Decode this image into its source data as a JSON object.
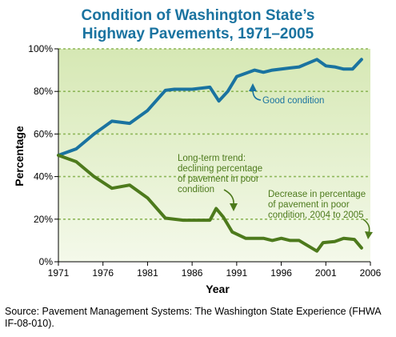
{
  "chart_data": {
    "type": "line",
    "title_line1": "Condition of Washington State’s",
    "title_line2": "Highway Pavements, 1971–2005",
    "xlabel": "Year",
    "ylabel": "Percentage",
    "xlim": [
      1971,
      2006
    ],
    "ylim": [
      0,
      100
    ],
    "x_ticks": [
      1971,
      1976,
      1981,
      1986,
      1991,
      1996,
      2001,
      2006
    ],
    "y_ticks": [
      {
        "value": 0,
        "label": "0%"
      },
      {
        "value": 20,
        "label": "20%"
      },
      {
        "value": 40,
        "label": "40%"
      },
      {
        "value": 60,
        "label": "60%"
      },
      {
        "value": 80,
        "label": "80%"
      },
      {
        "value": 100,
        "label": "100%"
      }
    ],
    "series": [
      {
        "name": "Good condition",
        "color": "#1a73a0",
        "points": [
          [
            1971,
            50
          ],
          [
            1973,
            53
          ],
          [
            1975,
            60
          ],
          [
            1977,
            66
          ],
          [
            1979,
            65
          ],
          [
            1981,
            71
          ],
          [
            1983,
            80.5
          ],
          [
            1984,
            81
          ],
          [
            1986,
            81
          ],
          [
            1988,
            82
          ],
          [
            1989,
            75.5
          ],
          [
            1990,
            80
          ],
          [
            1991,
            87
          ],
          [
            1993,
            90
          ],
          [
            1994,
            89
          ],
          [
            1995,
            90
          ],
          [
            1997,
            91
          ],
          [
            1998,
            91.5
          ],
          [
            2000,
            95
          ],
          [
            2001,
            92
          ],
          [
            2002,
            91.5
          ],
          [
            2003,
            90.5
          ],
          [
            2004,
            90.5
          ],
          [
            2005,
            95
          ]
        ]
      },
      {
        "name": "Poor condition",
        "color": "#4d7a1c",
        "points": [
          [
            1971,
            50
          ],
          [
            1973,
            47
          ],
          [
            1975,
            40
          ],
          [
            1977,
            34.5
          ],
          [
            1979,
            36
          ],
          [
            1981,
            30
          ],
          [
            1983,
            20.5
          ],
          [
            1985,
            19.5
          ],
          [
            1987,
            19.5
          ],
          [
            1988,
            19.5
          ],
          [
            1988.7,
            25
          ],
          [
            1989.5,
            21
          ],
          [
            1990.5,
            14
          ],
          [
            1992,
            11
          ],
          [
            1994,
            11
          ],
          [
            1995,
            10
          ],
          [
            1996,
            11
          ],
          [
            1997,
            10
          ],
          [
            1998,
            10
          ],
          [
            1999,
            7.5
          ],
          [
            2000,
            5
          ],
          [
            2000.7,
            9
          ],
          [
            2002,
            9.5
          ],
          [
            2003,
            11
          ],
          [
            2004.2,
            10.5
          ],
          [
            2005,
            6.5
          ]
        ]
      }
    ],
    "annotations": [
      {
        "lines": [
          "Good condition"
        ],
        "color": "#1a73a0"
      },
      {
        "lines": [
          "Long-term trend:",
          "declining percentage",
          "of pavement in poor",
          "condition"
        ],
        "color": "#4d7a1c"
      },
      {
        "lines": [
          "Decrease in percentage",
          "of pavement in poor",
          "condition, 2004 to 2005"
        ],
        "color": "#4d7a1c"
      }
    ],
    "colors": {
      "plot_bg_top": "#d6e8b4",
      "plot_bg_bottom": "#f4f9ea",
      "gridline": "#8fb75a",
      "title": "#1a73a0"
    }
  },
  "source_text": "Source: Pavement Management Systems: The Washington State Experience (FHWA IF-08-010)."
}
